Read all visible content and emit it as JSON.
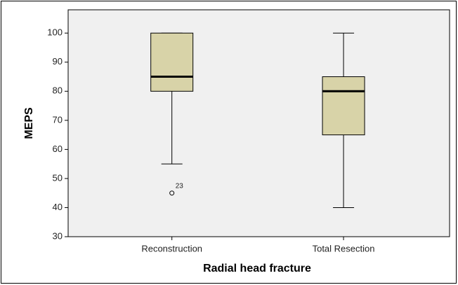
{
  "chart_data": {
    "type": "box",
    "x_label": "Radial head fracture",
    "y_label": "MEPS",
    "categories": [
      "Reconstruction",
      "Total Resection"
    ],
    "series": [
      {
        "min": 55,
        "q1": 80,
        "median": 85,
        "q3": 100,
        "max": 100,
        "outliers": [
          {
            "value": 45,
            "label": "23"
          }
        ]
      },
      {
        "min": 40,
        "q1": 65,
        "median": 80,
        "q3": 85,
        "max": 100,
        "outliers": []
      }
    ],
    "color": "#d8d3a8",
    "ylim": [
      30,
      108
    ],
    "yticks": [
      30,
      40,
      50,
      60,
      70,
      80,
      90,
      100
    ]
  }
}
